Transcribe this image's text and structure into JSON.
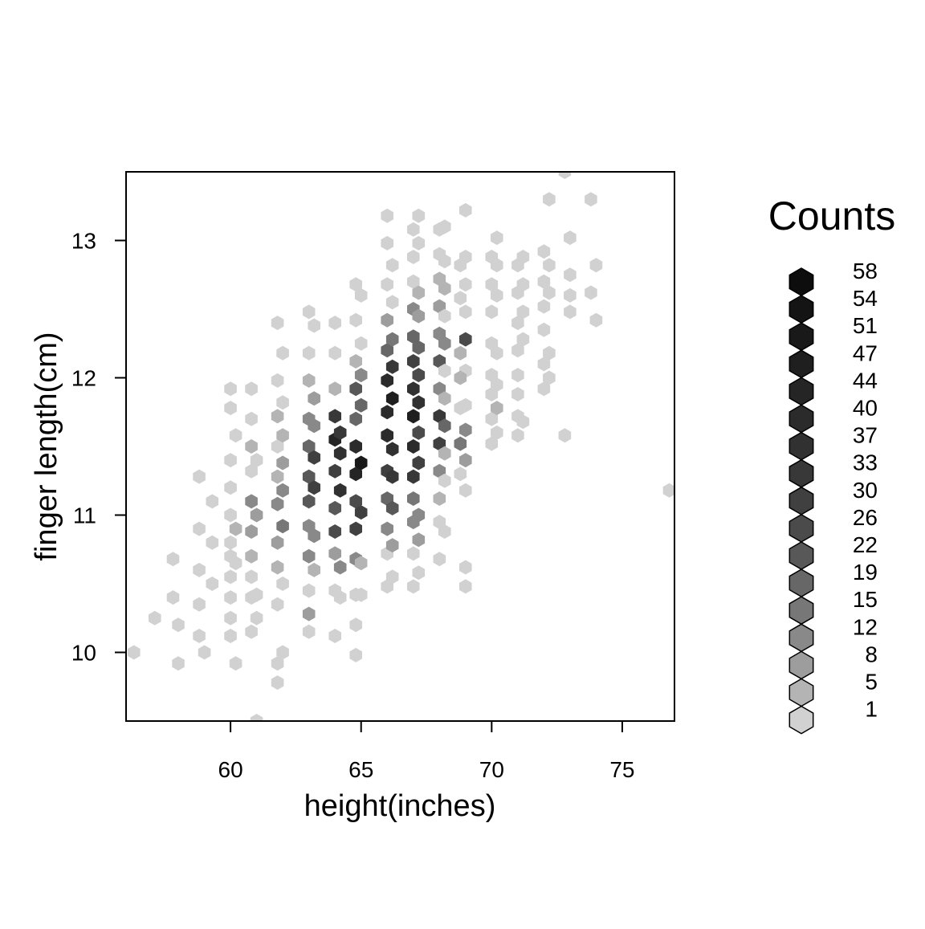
{
  "chart_data": {
    "type": "heatmap",
    "subtype": "hexbin",
    "title": "",
    "xlabel": "height(inches)",
    "ylabel": "finger length(cm)",
    "xlim": [
      56,
      77
    ],
    "ylim": [
      9.5,
      13.5
    ],
    "xticks": [
      60,
      65,
      70,
      75
    ],
    "yticks": [
      10,
      11,
      12,
      13
    ],
    "grid": false,
    "fill_color_low": "#d1d1d1",
    "fill_color_high": "#0d0d0d",
    "legend": {
      "title": "Counts",
      "placement": "right",
      "levels": [
        58,
        54,
        51,
        47,
        44,
        40,
        37,
        33,
        30,
        26,
        22,
        19,
        15,
        12,
        8,
        5,
        1
      ],
      "colors": [
        "#0d0d0d",
        "#141414",
        "#191919",
        "#1f1f1f",
        "#252525",
        "#2b2b2b",
        "#313131",
        "#383838",
        "#404040",
        "#4b4b4b",
        "#585858",
        "#676767",
        "#777777",
        "#898989",
        "#9d9d9d",
        "#b4b4b4",
        "#d1d1d1"
      ]
    },
    "cells": [
      [
        56.3,
        10.0,
        1
      ],
      [
        57.1,
        10.25,
        1
      ],
      [
        58.0,
        9.92,
        1
      ],
      [
        58.0,
        10.2,
        1
      ],
      [
        57.8,
        10.4,
        2
      ],
      [
        57.8,
        10.68,
        1
      ],
      [
        58.8,
        10.12,
        2
      ],
      [
        58.8,
        10.35,
        3
      ],
      [
        58.8,
        10.6,
        3
      ],
      [
        58.8,
        10.9,
        2
      ],
      [
        58.8,
        11.28,
        2
      ],
      [
        59.0,
        10.0,
        1
      ],
      [
        59.3,
        10.5,
        2
      ],
      [
        59.3,
        10.8,
        1
      ],
      [
        59.3,
        11.1,
        2
      ],
      [
        60.2,
        9.92,
        2
      ],
      [
        60.0,
        10.12,
        2
      ],
      [
        60.0,
        10.25,
        3
      ],
      [
        60.0,
        10.4,
        2
      ],
      [
        60.0,
        10.55,
        3
      ],
      [
        60.0,
        10.7,
        2
      ],
      [
        60.0,
        10.8,
        4
      ],
      [
        60.0,
        11.0,
        3
      ],
      [
        60.0,
        11.2,
        2
      ],
      [
        60.0,
        11.4,
        1
      ],
      [
        60.0,
        11.78,
        1
      ],
      [
        60.0,
        11.92,
        1
      ],
      [
        60.2,
        10.65,
        2
      ],
      [
        60.2,
        10.9,
        6
      ],
      [
        60.2,
        11.58,
        1
      ],
      [
        60.8,
        10.15,
        2
      ],
      [
        60.8,
        10.4,
        3
      ],
      [
        60.8,
        10.55,
        3
      ],
      [
        60.8,
        10.7,
        6
      ],
      [
        60.8,
        10.88,
        8
      ],
      [
        60.8,
        11.1,
        12
      ],
      [
        60.8,
        11.32,
        4
      ],
      [
        60.8,
        11.5,
        5
      ],
      [
        60.8,
        11.7,
        1
      ],
      [
        60.8,
        11.92,
        1
      ],
      [
        61.0,
        9.5,
        1
      ],
      [
        61.0,
        10.25,
        2
      ],
      [
        61.0,
        10.42,
        3
      ],
      [
        61.0,
        11.0,
        10
      ],
      [
        61.0,
        11.4,
        3
      ],
      [
        61.8,
        9.78,
        1
      ],
      [
        61.8,
        9.92,
        1
      ],
      [
        62.0,
        10.0,
        2
      ],
      [
        61.8,
        10.35,
        3
      ],
      [
        61.8,
        10.62,
        6
      ],
      [
        61.8,
        10.8,
        10
      ],
      [
        61.8,
        11.08,
        12
      ],
      [
        61.8,
        11.28,
        7
      ],
      [
        61.8,
        11.5,
        3
      ],
      [
        61.8,
        11.72,
        5
      ],
      [
        61.8,
        11.98,
        1
      ],
      [
        61.8,
        12.4,
        1
      ],
      [
        62.0,
        10.5,
        2
      ],
      [
        62.0,
        10.92,
        16
      ],
      [
        62.0,
        11.18,
        14
      ],
      [
        62.0,
        11.38,
        10
      ],
      [
        62.0,
        11.58,
        6
      ],
      [
        62.0,
        11.82,
        3
      ],
      [
        62.0,
        12.18,
        1
      ],
      [
        63.0,
        10.15,
        2
      ],
      [
        63.0,
        10.28,
        10
      ],
      [
        63.0,
        10.45,
        3
      ],
      [
        63.0,
        10.7,
        12
      ],
      [
        63.0,
        10.92,
        14
      ],
      [
        63.0,
        11.1,
        22
      ],
      [
        63.0,
        11.28,
        22
      ],
      [
        63.0,
        11.5,
        19
      ],
      [
        63.0,
        11.7,
        12
      ],
      [
        63.0,
        11.98,
        5
      ],
      [
        63.0,
        12.18,
        1
      ],
      [
        63.0,
        12.48,
        2
      ],
      [
        63.2,
        10.6,
        5
      ],
      [
        63.2,
        10.85,
        12
      ],
      [
        63.2,
        11.2,
        30
      ],
      [
        63.2,
        11.42,
        30
      ],
      [
        63.2,
        11.65,
        14
      ],
      [
        63.2,
        11.85,
        8
      ],
      [
        63.2,
        12.38,
        2
      ],
      [
        64.0,
        10.12,
        1
      ],
      [
        64.0,
        10.45,
        1
      ],
      [
        64.0,
        10.72,
        8
      ],
      [
        64.0,
        10.88,
        26
      ],
      [
        64.0,
        11.05,
        22
      ],
      [
        64.0,
        11.32,
        30
      ],
      [
        64.0,
        11.55,
        44
      ],
      [
        64.0,
        11.72,
        33
      ],
      [
        64.0,
        11.92,
        5
      ],
      [
        64.0,
        12.18,
        3
      ],
      [
        64.0,
        12.4,
        1
      ],
      [
        64.2,
        10.4,
        2
      ],
      [
        64.2,
        10.62,
        12
      ],
      [
        64.2,
        11.18,
        37
      ],
      [
        64.2,
        11.45,
        37
      ],
      [
        64.2,
        11.6,
        33
      ],
      [
        64.8,
        9.98,
        1
      ],
      [
        64.8,
        10.2,
        2
      ],
      [
        64.8,
        10.42,
        2
      ],
      [
        64.8,
        10.68,
        12
      ],
      [
        64.8,
        10.9,
        30
      ],
      [
        64.8,
        11.1,
        26
      ],
      [
        64.8,
        11.3,
        44
      ],
      [
        64.8,
        11.5,
        40
      ],
      [
        64.8,
        11.7,
        19
      ],
      [
        64.8,
        11.92,
        22
      ],
      [
        64.8,
        12.12,
        5
      ],
      [
        64.8,
        12.42,
        2
      ],
      [
        64.8,
        12.68,
        1
      ],
      [
        65.0,
        10.42,
        2
      ],
      [
        65.0,
        10.65,
        5
      ],
      [
        65.0,
        11.02,
        30
      ],
      [
        65.0,
        11.38,
        51
      ],
      [
        65.0,
        11.8,
        19
      ],
      [
        65.0,
        12.02,
        12
      ],
      [
        65.0,
        12.25,
        2
      ],
      [
        65.0,
        12.6,
        1
      ],
      [
        66.0,
        10.48,
        1
      ],
      [
        66.0,
        10.72,
        2
      ],
      [
        66.0,
        10.9,
        12
      ],
      [
        66.0,
        11.12,
        19
      ],
      [
        66.0,
        11.32,
        30
      ],
      [
        66.0,
        11.58,
        40
      ],
      [
        66.0,
        11.75,
        40
      ],
      [
        66.0,
        11.98,
        40
      ],
      [
        66.0,
        12.2,
        19
      ],
      [
        66.0,
        12.42,
        8
      ],
      [
        66.0,
        12.68,
        1
      ],
      [
        66.0,
        12.98,
        1
      ],
      [
        66.0,
        13.18,
        1
      ],
      [
        66.2,
        10.55,
        2
      ],
      [
        66.2,
        10.78,
        8
      ],
      [
        66.2,
        11.05,
        22
      ],
      [
        66.2,
        11.28,
        33
      ],
      [
        66.2,
        11.48,
        37
      ],
      [
        66.2,
        11.85,
        47
      ],
      [
        66.2,
        12.08,
        33
      ],
      [
        66.2,
        12.28,
        15
      ],
      [
        66.2,
        12.55,
        2
      ],
      [
        66.2,
        12.82,
        1
      ],
      [
        67.0,
        10.48,
        1
      ],
      [
        67.0,
        10.72,
        3
      ],
      [
        67.0,
        10.95,
        12
      ],
      [
        67.0,
        11.12,
        15
      ],
      [
        67.0,
        11.28,
        33
      ],
      [
        67.0,
        11.5,
        40
      ],
      [
        67.0,
        11.72,
        47
      ],
      [
        67.0,
        11.92,
        37
      ],
      [
        67.0,
        12.12,
        30
      ],
      [
        67.0,
        12.3,
        19
      ],
      [
        67.0,
        12.5,
        12
      ],
      [
        67.0,
        12.7,
        3
      ],
      [
        67.0,
        12.88,
        1
      ],
      [
        67.0,
        13.08,
        1
      ],
      [
        67.2,
        10.58,
        2
      ],
      [
        67.2,
        10.82,
        8
      ],
      [
        67.2,
        11.0,
        12
      ],
      [
        67.2,
        11.38,
        30
      ],
      [
        67.2,
        11.6,
        26
      ],
      [
        67.2,
        11.82,
        37
      ],
      [
        67.2,
        12.02,
        26
      ],
      [
        67.2,
        12.22,
        19
      ],
      [
        67.2,
        12.45,
        8
      ],
      [
        67.2,
        12.62,
        5
      ],
      [
        67.2,
        12.98,
        1
      ],
      [
        67.2,
        13.18,
        1
      ],
      [
        68.0,
        10.68,
        1
      ],
      [
        68.0,
        10.95,
        3
      ],
      [
        68.0,
        11.12,
        5
      ],
      [
        68.0,
        11.32,
        12
      ],
      [
        68.0,
        11.52,
        30
      ],
      [
        68.0,
        11.72,
        33
      ],
      [
        68.0,
        11.92,
        12
      ],
      [
        68.0,
        12.12,
        22
      ],
      [
        68.0,
        12.32,
        12
      ],
      [
        68.0,
        12.52,
        8
      ],
      [
        68.0,
        12.72,
        5
      ],
      [
        68.0,
        12.9,
        1
      ],
      [
        68.0,
        13.08,
        1
      ],
      [
        68.2,
        10.88,
        2
      ],
      [
        68.2,
        11.25,
        3
      ],
      [
        68.2,
        11.45,
        5
      ],
      [
        68.2,
        11.65,
        19
      ],
      [
        68.2,
        11.85,
        5
      ],
      [
        68.2,
        12.05,
        3
      ],
      [
        68.2,
        12.25,
        12
      ],
      [
        68.2,
        12.45,
        1
      ],
      [
        68.2,
        12.65,
        5
      ],
      [
        68.2,
        12.85,
        1
      ],
      [
        68.2,
        13.1,
        1
      ],
      [
        69.0,
        10.48,
        1
      ],
      [
        69.0,
        10.62,
        1
      ],
      [
        69.0,
        11.18,
        1
      ],
      [
        69.0,
        11.4,
        8
      ],
      [
        69.0,
        11.62,
        12
      ],
      [
        69.0,
        11.8,
        3
      ],
      [
        69.0,
        12.05,
        1
      ],
      [
        69.0,
        12.28,
        26
      ],
      [
        69.0,
        12.48,
        1
      ],
      [
        69.0,
        12.68,
        3
      ],
      [
        69.0,
        12.88,
        1
      ],
      [
        69.0,
        13.22,
        1
      ],
      [
        68.8,
        11.3,
        1
      ],
      [
        68.8,
        11.52,
        15
      ],
      [
        68.8,
        11.78,
        3
      ],
      [
        68.8,
        12.0,
        5
      ],
      [
        68.8,
        12.18,
        5
      ],
      [
        68.8,
        12.58,
        3
      ],
      [
        68.8,
        12.82,
        1
      ],
      [
        70.0,
        11.52,
        1
      ],
      [
        70.0,
        11.7,
        2
      ],
      [
        70.0,
        11.88,
        1
      ],
      [
        70.0,
        12.02,
        3
      ],
      [
        70.0,
        12.25,
        3
      ],
      [
        70.0,
        12.48,
        1
      ],
      [
        70.0,
        12.68,
        1
      ],
      [
        70.0,
        12.88,
        1
      ],
      [
        70.2,
        11.6,
        1
      ],
      [
        70.2,
        11.78,
        5
      ],
      [
        70.2,
        11.95,
        1
      ],
      [
        70.2,
        12.18,
        1
      ],
      [
        70.2,
        12.6,
        1
      ],
      [
        70.2,
        12.82,
        1
      ],
      [
        70.2,
        13.02,
        1
      ],
      [
        71.0,
        11.58,
        1
      ],
      [
        71.0,
        11.72,
        1
      ],
      [
        71.0,
        11.88,
        1
      ],
      [
        71.0,
        12.02,
        1
      ],
      [
        71.0,
        12.2,
        2
      ],
      [
        71.0,
        12.4,
        1
      ],
      [
        71.0,
        12.62,
        3
      ],
      [
        71.0,
        12.82,
        1
      ],
      [
        71.2,
        11.68,
        1
      ],
      [
        71.2,
        12.28,
        3
      ],
      [
        71.2,
        12.48,
        1
      ],
      [
        71.2,
        12.68,
        1
      ],
      [
        71.2,
        12.88,
        3
      ],
      [
        72.0,
        11.92,
        1
      ],
      [
        72.0,
        12.1,
        1
      ],
      [
        72.0,
        12.35,
        1
      ],
      [
        72.0,
        12.52,
        1
      ],
      [
        72.0,
        12.7,
        1
      ],
      [
        72.0,
        12.92,
        1
      ],
      [
        72.2,
        12.0,
        1
      ],
      [
        72.2,
        12.18,
        1
      ],
      [
        72.2,
        12.62,
        1
      ],
      [
        72.2,
        12.82,
        1
      ],
      [
        72.2,
        13.3,
        1
      ],
      [
        72.8,
        11.58,
        1
      ],
      [
        72.8,
        13.5,
        1
      ],
      [
        73.0,
        12.48,
        1
      ],
      [
        73.0,
        12.6,
        1
      ],
      [
        73.0,
        12.75,
        1
      ],
      [
        73.0,
        13.02,
        1
      ],
      [
        73.8,
        12.62,
        1
      ],
      [
        73.8,
        13.3,
        1
      ],
      [
        74.0,
        12.42,
        1
      ],
      [
        74.0,
        12.82,
        1
      ],
      [
        76.8,
        11.18,
        1
      ]
    ]
  }
}
